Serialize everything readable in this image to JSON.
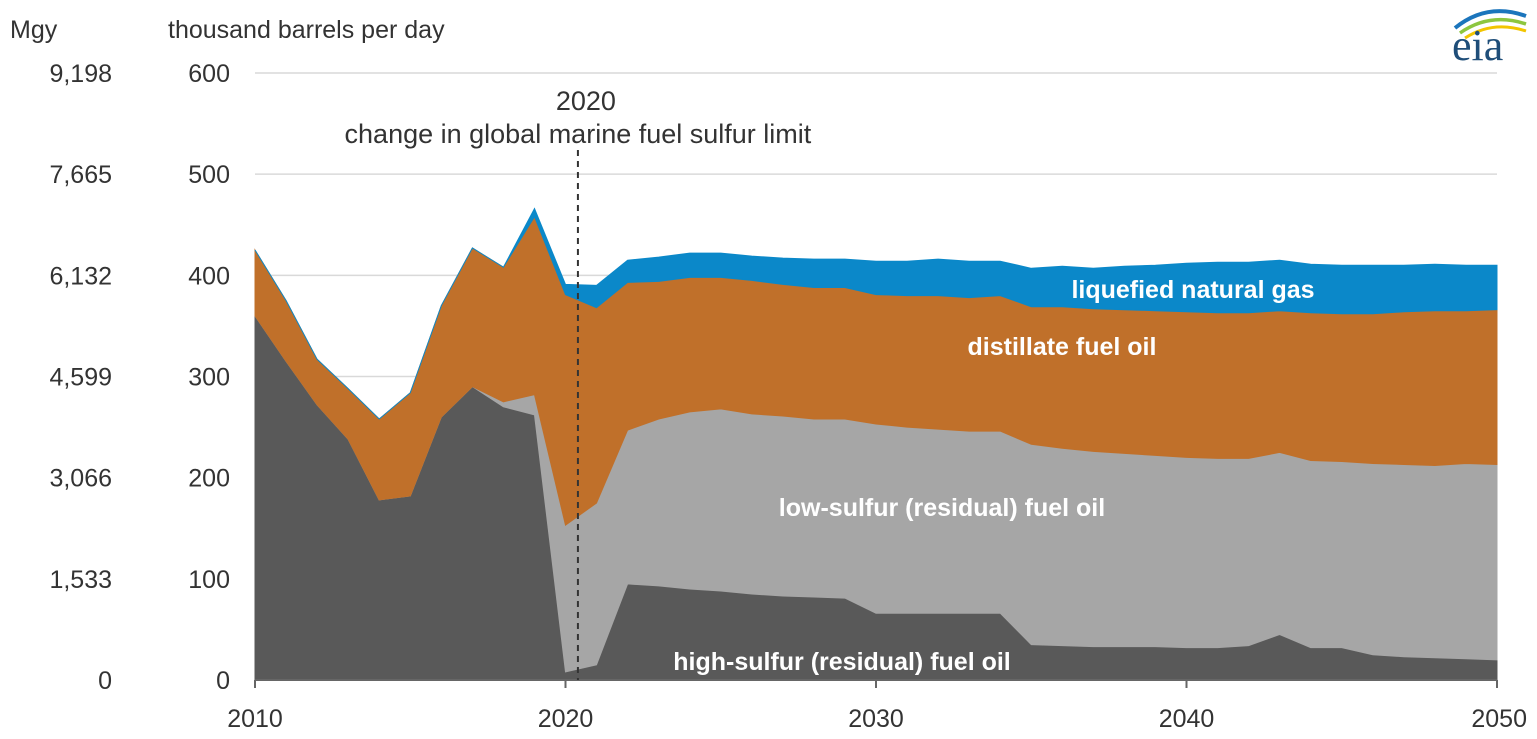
{
  "chart_data": {
    "type": "area",
    "stacked": true,
    "left_unit_label": "Mgy",
    "right_unit_label": "thousand barrels per day",
    "xlim": [
      2010,
      2050
    ],
    "ylim": [
      0,
      600
    ],
    "x_ticks": [
      "2010",
      "2020",
      "2030",
      "2040",
      "2050"
    ],
    "y_ticks": [
      "0",
      "100",
      "200",
      "300",
      "400",
      "500",
      "600"
    ],
    "y_ticks_secondary": [
      "0",
      "1,533",
      "3,066",
      "4,599",
      "6,132",
      "7,665",
      "9,198"
    ],
    "grid": true,
    "annotation": {
      "x": 2020.4,
      "line1": "2020",
      "line2": "change in global marine fuel sulfur limit"
    },
    "x": [
      2010,
      2011,
      2012,
      2013,
      2014,
      2015,
      2016,
      2017,
      2018,
      2019,
      2020,
      2021,
      2022,
      2023,
      2024,
      2025,
      2026,
      2027,
      2028,
      2029,
      2030,
      2031,
      2032,
      2033,
      2034,
      2035,
      2036,
      2037,
      2038,
      2039,
      2040,
      2041,
      2042,
      2043,
      2044,
      2045,
      2046,
      2047,
      2048,
      2049,
      2050
    ],
    "series": [
      {
        "name": "high-sulfur (residual) fuel oil",
        "color": "#595959",
        "values": [
          360,
          315,
          272,
          238,
          178,
          182,
          260,
          290,
          270,
          262,
          8,
          15,
          95,
          93,
          90,
          88,
          85,
          83,
          82,
          81,
          66,
          66,
          66,
          66,
          66,
          35,
          34,
          33,
          33,
          33,
          32,
          32,
          34,
          45,
          32,
          32,
          25,
          23,
          22,
          21,
          20
        ]
      },
      {
        "name": "low-sulfur (residual) fuel oil",
        "color": "#a6a6a6",
        "values": [
          0,
          0,
          0,
          0,
          0,
          0,
          0,
          0,
          5,
          20,
          145,
          160,
          152,
          165,
          175,
          180,
          178,
          178,
          176,
          177,
          187,
          184,
          182,
          180,
          180,
          198,
          195,
          193,
          191,
          189,
          188,
          187,
          185,
          180,
          185,
          184,
          189,
          190,
          190,
          193,
          193
        ]
      },
      {
        "name": "distillate fuel oil",
        "color": "#c0702a",
        "values": [
          65,
          60,
          45,
          50,
          80,
          102,
          110,
          137,
          133,
          176,
          228,
          193,
          146,
          136,
          133,
          130,
          132,
          130,
          130,
          130,
          128,
          130,
          132,
          132,
          134,
          136,
          140,
          141,
          142,
          143,
          144,
          144,
          144,
          140,
          146,
          146,
          148,
          151,
          153,
          151,
          153
        ]
      },
      {
        "name": "liquefied natural gas",
        "color": "#0b88c9",
        "values": [
          0,
          0,
          0,
          0,
          0,
          0,
          0,
          0,
          0,
          8,
          10,
          22,
          22,
          24,
          24,
          24,
          24,
          26,
          28,
          28,
          33,
          34,
          36,
          36,
          34,
          38,
          40,
          40,
          43,
          45,
          48,
          50,
          50,
          50,
          48,
          48,
          48,
          46,
          46,
          45,
          44
        ]
      }
    ]
  },
  "logo": {
    "text": "eia"
  }
}
